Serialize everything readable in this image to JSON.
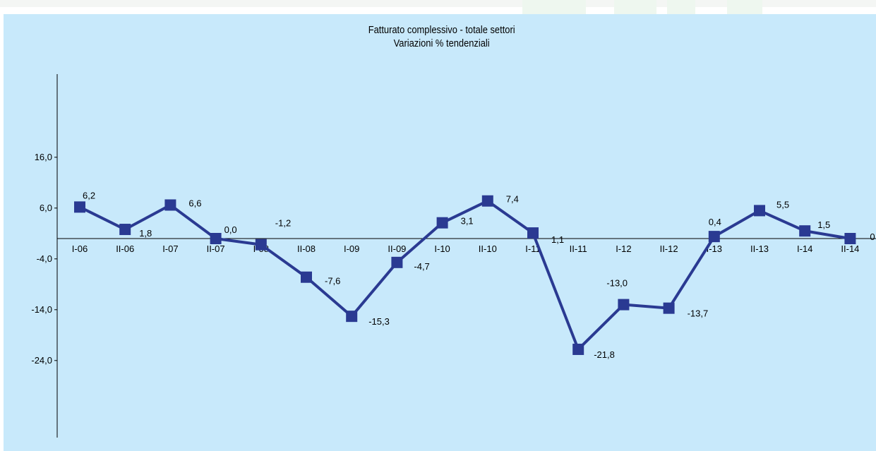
{
  "chart_data": {
    "type": "line",
    "title": "Fatturato complessivo - totale settori",
    "subtitle": "Variazioni % tendenziali",
    "categories": [
      "I-06",
      "II-06",
      "I-07",
      "II-07",
      "I-08",
      "II-08",
      "I-09",
      "II-09",
      "I-10",
      "II-10",
      "I-11",
      "II-11",
      "I-12",
      "II-12",
      "I-13",
      "II-13",
      "I-14",
      "II-14"
    ],
    "series": [
      {
        "values": [
          6.2,
          1.8,
          6.6,
          0.0,
          -1.2,
          -7.6,
          -15.3,
          -4.7,
          3.1,
          7.4,
          1.1,
          -21.8,
          -13.0,
          -13.7,
          0.4,
          5.5,
          1.5,
          0
        ],
        "labels": [
          "6,2",
          "1,8",
          "6,6",
          "0,0",
          "-1,2",
          "-7,6",
          "-15,3",
          "-4,7",
          "3,1",
          "7,4",
          "1,1",
          "-21,8",
          "-13,0",
          "-13,7",
          "0,4",
          "5,5",
          "1,5",
          "0"
        ],
        "color": "#2a3a92"
      }
    ],
    "y_ticks": [
      16,
      6,
      -4,
      -14,
      -24
    ],
    "y_tick_labels": [
      "16,0",
      "6,0",
      "-4,0",
      "-14,0",
      "-24,0"
    ],
    "ylim": [
      -24,
      22
    ],
    "grid": false,
    "legend": "none",
    "background_color": "#c8e9fb"
  }
}
